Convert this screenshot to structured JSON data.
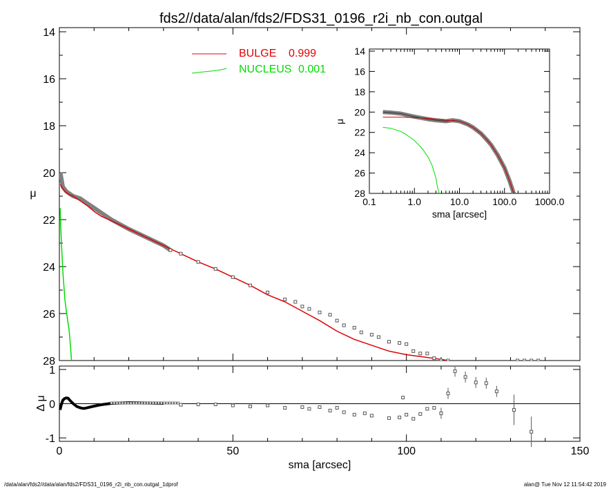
{
  "colors": {
    "bulge": "#e00000",
    "nucleus": "#00dd00",
    "data": "#000000",
    "points": "#808080"
  },
  "chart_data": [
    {
      "type": "line",
      "title": "fds2//data/alan/fds2/FDS31_0196_r2i_nb_con.outgal",
      "xlabel": "",
      "ylabel": "μ",
      "xlim": [
        0,
        150
      ],
      "ylim": [
        28,
        14
      ],
      "y_ticks": [
        "14",
        "16",
        "18",
        "20",
        "22",
        "24",
        "26",
        "28"
      ],
      "legend": [
        {
          "name": "BULGE",
          "value": "0.999",
          "color": "#e00000"
        },
        {
          "name": "NUCLEUS",
          "value": "0.001",
          "color": "#00dd00"
        }
      ],
      "series": [
        {
          "name": "BULGE",
          "x": [
            0.3,
            1,
            2,
            3,
            4,
            6,
            8,
            10,
            12,
            15,
            20,
            25,
            30,
            35,
            40,
            45,
            50,
            55,
            60,
            65,
            70,
            75,
            80,
            85,
            90,
            95,
            100,
            105,
            110,
            112
          ],
          "y": [
            20.5,
            20.7,
            20.85,
            20.95,
            21.0,
            21.2,
            21.4,
            21.65,
            21.85,
            22.05,
            22.4,
            22.75,
            23.1,
            23.45,
            23.8,
            24.1,
            24.45,
            24.8,
            25.2,
            25.5,
            25.9,
            26.3,
            26.75,
            27.1,
            27.35,
            27.6,
            27.75,
            27.85,
            27.95,
            28.0
          ]
        },
        {
          "name": "NUCLEUS",
          "x": [
            0.2,
            0.4,
            0.6,
            0.8,
            1.0,
            1.3,
            1.6,
            2.0,
            2.4,
            2.8,
            3.2,
            3.5
          ],
          "y": [
            21.5,
            22.3,
            23.0,
            23.6,
            24.2,
            24.8,
            25.4,
            25.9,
            26.3,
            26.7,
            27.4,
            28.0
          ]
        },
        {
          "name": "points",
          "x": [
            0.3,
            1,
            2,
            3,
            4,
            6,
            8,
            10,
            12,
            15,
            20,
            25,
            30,
            32,
            35,
            40,
            45,
            50,
            55,
            60,
            65,
            68,
            70,
            72,
            75,
            78,
            80,
            82,
            85,
            87,
            90,
            92,
            95,
            98,
            100,
            102,
            104,
            106,
            108,
            110,
            112,
            132,
            134,
            136,
            138
          ],
          "y": [
            20.0,
            20.6,
            20.8,
            20.9,
            21.0,
            21.1,
            21.3,
            21.5,
            21.7,
            22.0,
            22.4,
            22.75,
            23.1,
            23.3,
            23.45,
            23.8,
            24.1,
            24.45,
            24.8,
            25.1,
            25.4,
            25.5,
            25.7,
            25.8,
            25.95,
            26.05,
            26.3,
            26.5,
            26.6,
            26.8,
            26.9,
            27.0,
            27.2,
            27.25,
            27.3,
            27.6,
            27.7,
            27.7,
            27.9,
            28.0,
            28.0,
            28.0,
            28.0,
            28.0,
            28.0
          ]
        }
      ]
    },
    {
      "type": "scatter",
      "xlabel": "sma [arcsec]",
      "ylabel": "Δ μ",
      "xlim": [
        0,
        150
      ],
      "ylim": [
        -1.1,
        1.1
      ],
      "x_ticks": [
        "0",
        "50",
        "100",
        "150"
      ],
      "y_ticks": [
        "1",
        "0",
        "-1"
      ],
      "residual_curve": {
        "x": [
          0.2,
          0.5,
          1,
          1.5,
          2,
          2.5,
          3,
          4,
          5,
          6,
          7,
          8,
          10,
          12,
          15,
          20,
          25,
          30
        ],
        "y": [
          -0.18,
          -0.05,
          0.1,
          0.15,
          0.17,
          0.16,
          0.1,
          0.0,
          -0.08,
          -0.12,
          -0.14,
          -0.12,
          -0.07,
          -0.03,
          0.01,
          0.03,
          0.02,
          0.01
        ]
      },
      "points": {
        "x": [
          35,
          40,
          45,
          50,
          55,
          60,
          65,
          70,
          72,
          75,
          78,
          80,
          82,
          85,
          88,
          90,
          95,
          98,
          99,
          100,
          102,
          104,
          106,
          108,
          110,
          112,
          114,
          117,
          120,
          123,
          126,
          131,
          136
        ],
        "y": [
          -0.03,
          -0.02,
          -0.02,
          -0.05,
          -0.08,
          -0.05,
          -0.12,
          -0.1,
          -0.15,
          -0.1,
          -0.2,
          -0.12,
          -0.25,
          -0.32,
          -0.28,
          -0.35,
          -0.42,
          -0.4,
          0.18,
          -0.32,
          -0.44,
          -0.3,
          -0.15,
          -0.12,
          -0.28,
          0.3,
          0.95,
          0.78,
          0.62,
          0.6,
          0.36,
          -0.18,
          -0.82
        ]
      }
    },
    {
      "type": "line",
      "xlabel": "sma [arcsec]",
      "ylabel": "μ",
      "xscale": "log",
      "xlim": [
        0.1,
        1000
      ],
      "ylim": [
        28,
        14
      ],
      "x_ticks": [
        "0.1",
        "1.0",
        "10.0",
        "100.0",
        "1000.0"
      ],
      "y_ticks": [
        "14",
        "16",
        "18",
        "20",
        "22",
        "24",
        "26",
        "28"
      ],
      "series": [
        {
          "name": "data",
          "x": [
            0.2,
            0.3,
            0.5,
            0.7,
            1,
            1.5,
            2,
            3,
            5,
            7,
            10,
            15,
            20,
            30,
            40,
            50,
            70,
            100,
            130,
            160
          ],
          "y": [
            20.0,
            20.05,
            20.15,
            20.3,
            20.45,
            20.6,
            20.7,
            20.8,
            20.9,
            20.8,
            20.9,
            21.2,
            21.5,
            22.1,
            22.7,
            23.2,
            24.2,
            25.5,
            26.8,
            28.0
          ]
        },
        {
          "name": "BULGE",
          "x": [
            0.2,
            0.5,
            1,
            2,
            3,
            5,
            7,
            10,
            15,
            20,
            30,
            40,
            50,
            70,
            100,
            130,
            160
          ],
          "y": [
            20.5,
            20.5,
            20.55,
            20.6,
            20.7,
            20.8,
            20.85,
            20.9,
            21.2,
            21.5,
            22.1,
            22.7,
            23.2,
            24.2,
            25.5,
            26.8,
            28.0
          ]
        },
        {
          "name": "NUCLEUS",
          "x": [
            0.2,
            0.3,
            0.5,
            0.7,
            1,
            1.5,
            2,
            2.5,
            3,
            3.2,
            3.5
          ],
          "y": [
            21.5,
            21.6,
            21.9,
            22.3,
            22.8,
            23.6,
            24.4,
            25.3,
            26.5,
            27.2,
            28.0
          ]
        }
      ]
    }
  ],
  "footer": {
    "left": "/data/alan/fds2//data/alan/fds2/FDS31_0196_r2i_nb_con.outgal_1dprof",
    "right": "alan@  Tue Nov 12 11:54:42 2019"
  }
}
